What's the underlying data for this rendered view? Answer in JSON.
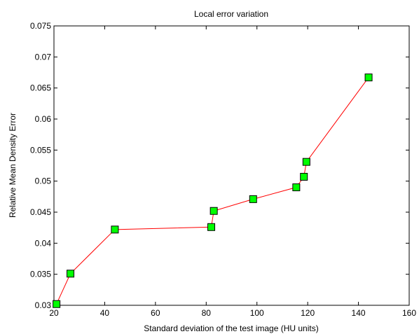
{
  "chart_data": {
    "type": "line",
    "title": "Local error variation",
    "xlabel": "Standard deviation of the test image (HU units)",
    "ylabel": "Relative Mean Density Error",
    "xlim": [
      20,
      160
    ],
    "ylim": [
      0.03,
      0.075
    ],
    "xticks": [
      "20",
      "40",
      "60",
      "80",
      "100",
      "120",
      "140",
      "160"
    ],
    "yticks": [
      "0.03",
      "0.035",
      "0.04",
      "0.045",
      "0.05",
      "0.055",
      "0.06",
      "0.065",
      "0.07",
      "0.075"
    ],
    "grid": false,
    "series": [
      {
        "line_color": "#ff0000",
        "marker": "square",
        "marker_face_color": "#00ff00",
        "marker_edge_color": "#000000",
        "points": [
          {
            "x": 21,
            "y": 0.0302
          },
          {
            "x": 26.5,
            "y": 0.0351
          },
          {
            "x": 44,
            "y": 0.0422
          },
          {
            "x": 82,
            "y": 0.0426
          },
          {
            "x": 83,
            "y": 0.0452
          },
          {
            "x": 98.5,
            "y": 0.0471
          },
          {
            "x": 115.5,
            "y": 0.049
          },
          {
            "x": 118.5,
            "y": 0.0507
          },
          {
            "x": 119.5,
            "y": 0.0531
          },
          {
            "x": 144,
            "y": 0.0667
          }
        ]
      }
    ]
  }
}
